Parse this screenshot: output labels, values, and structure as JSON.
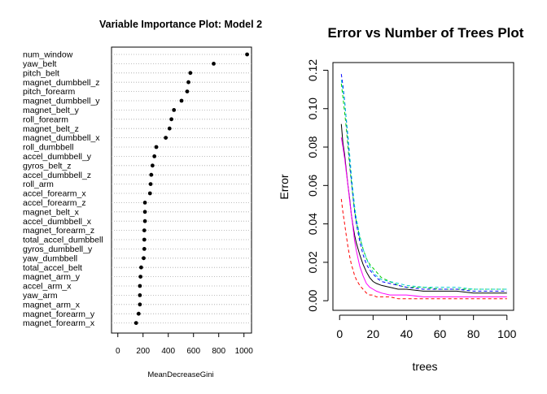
{
  "chart_data": [
    {
      "type": "scatter",
      "title": "Variable Importance Plot: Model 2",
      "xlabel": "MeanDecreaseGini",
      "ylabel": "",
      "xlim": [
        -50,
        1060
      ],
      "xticks": [
        0,
        200,
        400,
        600,
        800,
        1000
      ],
      "grid": "dotted horizontal per row",
      "categories": [
        "num_window",
        "yaw_belt",
        "pitch_belt",
        "magnet_dumbbell_z",
        "pitch_forearm",
        "magnet_dumbbell_y",
        "magnet_belt_y",
        "roll_forearm",
        "magnet_belt_z",
        "magnet_dumbbell_x",
        "roll_dumbbell",
        "accel_dumbbell_y",
        "gyros_belt_z",
        "accel_dumbbell_z",
        "roll_arm",
        "accel_forearm_x",
        "accel_forearm_z",
        "magnet_belt_x",
        "accel_dumbbell_x",
        "magnet_forearm_z",
        "total_accel_dumbbell",
        "gyros_dumbbell_y",
        "yaw_dumbbell",
        "total_accel_belt",
        "magnet_arm_y",
        "accel_arm_x",
        "yaw_arm",
        "magnet_arm_x",
        "magnet_forearm_y",
        "magnet_forearm_x"
      ],
      "values": [
        1025,
        760,
        575,
        560,
        550,
        505,
        445,
        425,
        410,
        380,
        305,
        290,
        275,
        265,
        260,
        255,
        215,
        215,
        215,
        210,
        210,
        210,
        205,
        185,
        180,
        175,
        175,
        175,
        165,
        145
      ]
    },
    {
      "type": "line",
      "title": "Error vs Number of Trees Plot",
      "xlabel": "trees",
      "ylabel": "Error",
      "xlim": [
        -4,
        104
      ],
      "ylim": [
        -0.005,
        0.124
      ],
      "xticks": [
        0,
        20,
        40,
        60,
        80,
        100
      ],
      "yticks": [
        0.0,
        0.02,
        0.04,
        0.06,
        0.08,
        0.1,
        0.12
      ],
      "legend": "none",
      "series": [
        {
          "color": "#000000",
          "dash": "solid",
          "x": [
            1,
            2,
            3,
            4,
            5,
            6,
            7,
            8,
            9,
            10,
            12,
            14,
            16,
            18,
            20,
            22,
            25,
            30,
            35,
            40,
            50,
            60,
            70,
            80,
            90,
            100
          ],
          "y": [
            0.092,
            0.082,
            0.076,
            0.068,
            0.06,
            0.053,
            0.045,
            0.039,
            0.034,
            0.03,
            0.024,
            0.019,
            0.015,
            0.012,
            0.01,
            0.009,
            0.008,
            0.007,
            0.006,
            0.006,
            0.005,
            0.005,
            0.005,
            0.004,
            0.004,
            0.004
          ]
        },
        {
          "color": "#ff0000",
          "dash": "dashed",
          "x": [
            1,
            2,
            3,
            4,
            5,
            6,
            7,
            8,
            9,
            10,
            12,
            14,
            16,
            18,
            20,
            22,
            25,
            30,
            35,
            40,
            50,
            60,
            70,
            80,
            90,
            100
          ],
          "y": [
            0.053,
            0.046,
            0.04,
            0.034,
            0.028,
            0.023,
            0.019,
            0.016,
            0.013,
            0.011,
            0.008,
            0.006,
            0.004,
            0.003,
            0.003,
            0.002,
            0.002,
            0.002,
            0.001,
            0.001,
            0.001,
            0.001,
            0.001,
            0.001,
            0.001,
            0.001
          ]
        },
        {
          "color": "#00cd00",
          "dash": "dashed",
          "x": [
            1,
            2,
            3,
            4,
            5,
            6,
            7,
            8,
            9,
            10,
            12,
            14,
            16,
            18,
            20,
            22,
            25,
            30,
            35,
            40,
            50,
            60,
            70,
            80,
            90,
            100
          ],
          "y": [
            0.113,
            0.106,
            0.098,
            0.09,
            0.08,
            0.07,
            0.062,
            0.054,
            0.047,
            0.041,
            0.033,
            0.027,
            0.022,
            0.019,
            0.017,
            0.015,
            0.012,
            0.01,
            0.008,
            0.007,
            0.007,
            0.006,
            0.006,
            0.006,
            0.006,
            0.006
          ]
        },
        {
          "color": "#0000ff",
          "dash": "dashed",
          "x": [
            1,
            2,
            3,
            4,
            5,
            6,
            7,
            8,
            9,
            10,
            12,
            14,
            16,
            18,
            20,
            22,
            25,
            30,
            35,
            40,
            50,
            60,
            70,
            80,
            90,
            100
          ],
          "y": [
            0.118,
            0.112,
            0.104,
            0.094,
            0.084,
            0.073,
            0.063,
            0.054,
            0.046,
            0.04,
            0.031,
            0.024,
            0.019,
            0.016,
            0.014,
            0.012,
            0.01,
            0.009,
            0.008,
            0.007,
            0.006,
            0.006,
            0.006,
            0.005,
            0.005,
            0.005
          ]
        },
        {
          "color": "#00cdcd",
          "dash": "dashed",
          "x": [
            1,
            2,
            3,
            4,
            5,
            6,
            7,
            8,
            9,
            10,
            12,
            14,
            16,
            18,
            20,
            22,
            25,
            30,
            35,
            40,
            50,
            60,
            70,
            80,
            90,
            100
          ],
          "y": [
            0.115,
            0.11,
            0.103,
            0.095,
            0.086,
            0.076,
            0.066,
            0.057,
            0.049,
            0.043,
            0.034,
            0.027,
            0.022,
            0.018,
            0.015,
            0.013,
            0.011,
            0.01,
            0.009,
            0.008,
            0.007,
            0.007,
            0.007,
            0.006,
            0.006,
            0.006
          ]
        },
        {
          "color": "#ff00ff",
          "dash": "solid",
          "x": [
            1,
            2,
            3,
            4,
            5,
            6,
            7,
            8,
            9,
            10,
            12,
            14,
            16,
            18,
            20,
            22,
            25,
            30,
            35,
            40,
            50,
            60,
            70,
            80,
            90,
            100
          ],
          "y": [
            0.085,
            0.08,
            0.074,
            0.067,
            0.06,
            0.052,
            0.045,
            0.038,
            0.031,
            0.026,
            0.018,
            0.013,
            0.009,
            0.007,
            0.006,
            0.005,
            0.004,
            0.003,
            0.003,
            0.003,
            0.002,
            0.002,
            0.002,
            0.002,
            0.002,
            0.002
          ]
        }
      ]
    }
  ]
}
